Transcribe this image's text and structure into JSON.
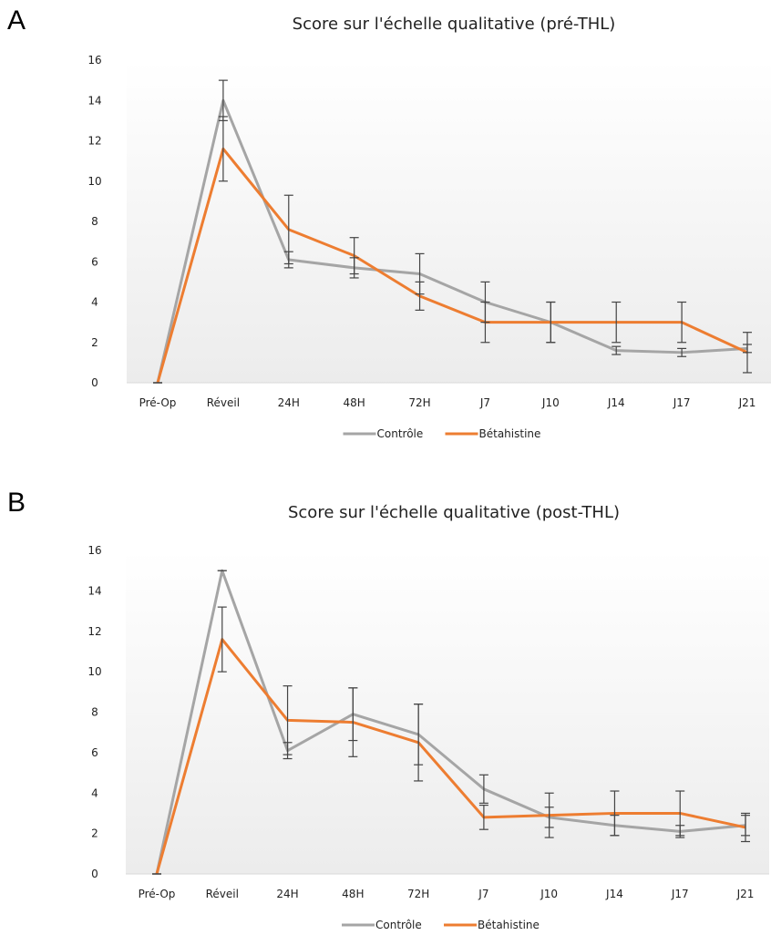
{
  "chart_data": [
    {
      "panel_label": "A",
      "type": "line",
      "title": "Score sur l'échelle qualitative (pré-THL)",
      "categories": [
        "Pré-Op",
        "Réveil",
        "24H",
        "48H",
        "72H",
        "J7",
        "J10",
        "J14",
        "J17",
        "J21"
      ],
      "ylim": [
        0,
        16
      ],
      "yticks": [
        0,
        2,
        4,
        6,
        8,
        10,
        12,
        14,
        16
      ],
      "grid": false,
      "legend": "bottom",
      "series": [
        {
          "name": "Contrôle",
          "color": "#a5a5a5",
          "values": [
            0,
            14,
            6.1,
            5.7,
            5.4,
            4,
            3,
            1.6,
            1.5,
            1.7
          ],
          "error": [
            0,
            1,
            0.4,
            0.5,
            1,
            1,
            1,
            0.2,
            0.2,
            0.2
          ]
        },
        {
          "name": "Bétahistine",
          "color": "#ed7d31",
          "values": [
            0,
            11.6,
            7.6,
            6.3,
            4.3,
            3,
            3,
            3,
            3,
            1.5
          ],
          "error": [
            0,
            1.6,
            1.7,
            0.9,
            0.7,
            1,
            1,
            1,
            1,
            1
          ]
        }
      ]
    },
    {
      "panel_label": "B",
      "type": "line",
      "title": "Score sur l'échelle qualitative (post-THL)",
      "categories": [
        "Pré-Op",
        "Réveil",
        "24H",
        "48H",
        "72H",
        "J7",
        "J10",
        "J14",
        "J17",
        "J21"
      ],
      "ylim": [
        0,
        16
      ],
      "yticks": [
        0,
        2,
        4,
        6,
        8,
        10,
        12,
        14,
        16
      ],
      "grid": false,
      "legend": "bottom",
      "series": [
        {
          "name": "Contrôle",
          "color": "#a5a5a5",
          "values": [
            0,
            15,
            6.1,
            7.9,
            6.9,
            4.2,
            2.8,
            2.4,
            2.1,
            2.4
          ],
          "error": [
            0,
            0,
            0.4,
            1.3,
            1.5,
            0.7,
            0.5,
            0.5,
            0.3,
            0.5
          ]
        },
        {
          "name": "Bétahistine",
          "color": "#ed7d31",
          "values": [
            0,
            11.6,
            7.6,
            7.5,
            6.5,
            2.8,
            2.9,
            3,
            3,
            2.3
          ],
          "error": [
            0,
            1.6,
            1.7,
            1.7,
            1.9,
            0.6,
            1.1,
            1.1,
            1.1,
            0.7
          ]
        }
      ]
    }
  ]
}
